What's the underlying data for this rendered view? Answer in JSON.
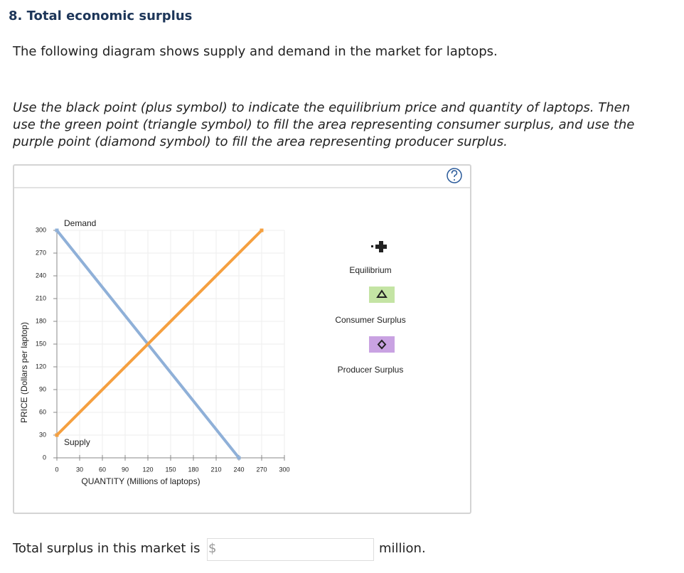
{
  "question": {
    "title": "8. Total economic surplus",
    "intro": "The following diagram shows supply and demand in the market for laptops.",
    "instructions": "Use the black point (plus symbol) to indicate the equilibrium price and quantity of laptops. Then use the green point (triangle symbol) to fill the area representing consumer surplus, and use the purple point (diamond symbol) to fill the area representing producer surplus."
  },
  "chart_data": {
    "type": "line",
    "x_label": "QUANTITY (Millions of laptops)",
    "y_label": "PRICE (Dollars per laptop)",
    "xlim": [
      0,
      300
    ],
    "ylim": [
      0,
      300
    ],
    "xticks": [
      0,
      30,
      60,
      90,
      120,
      150,
      180,
      210,
      240,
      270,
      300
    ],
    "yticks": [
      0,
      30,
      60,
      90,
      120,
      150,
      180,
      210,
      240,
      270,
      300
    ],
    "grid": true,
    "series": [
      {
        "name": "Demand",
        "color": "#8fb0d8",
        "x": [
          0,
          240
        ],
        "values": [
          300,
          0
        ]
      },
      {
        "name": "Supply",
        "color": "#f5a040",
        "x": [
          0,
          270
        ],
        "values": [
          30,
          300
        ]
      }
    ]
  },
  "tools": [
    {
      "label": "Equilibrium"
    },
    {
      "label": "Consumer Surplus"
    },
    {
      "label": "Producer Surplus"
    }
  ],
  "answer": {
    "prefix": "Total surplus in this market is",
    "currency": "$",
    "suffix": "million."
  }
}
